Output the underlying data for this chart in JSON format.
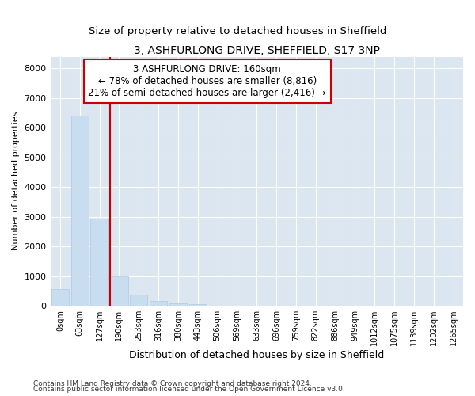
{
  "title": "3, ASHFURLONG DRIVE, SHEFFIELD, S17 3NP",
  "subtitle": "Size of property relative to detached houses in Sheffield",
  "xlabel": "Distribution of detached houses by size in Sheffield",
  "ylabel": "Number of detached properties",
  "footer_line1": "Contains HM Land Registry data © Crown copyright and database right 2024.",
  "footer_line2": "Contains public sector information licensed under the Open Government Licence v3.0.",
  "bar_labels": [
    "0sqm",
    "63sqm",
    "127sqm",
    "190sqm",
    "253sqm",
    "316sqm",
    "380sqm",
    "443sqm",
    "506sqm",
    "569sqm",
    "633sqm",
    "696sqm",
    "759sqm",
    "822sqm",
    "886sqm",
    "949sqm",
    "1012sqm",
    "1075sqm",
    "1139sqm",
    "1202sqm",
    "1265sqm"
  ],
  "bar_values": [
    550,
    6400,
    2950,
    1000,
    380,
    170,
    90,
    55,
    0,
    0,
    0,
    0,
    0,
    0,
    0,
    0,
    0,
    0,
    0,
    0,
    0
  ],
  "bar_color": "#c9ddf0",
  "bar_edge_color": "#b0c8e0",
  "ylim": [
    0,
    8400
  ],
  "yticks": [
    0,
    1000,
    2000,
    3000,
    4000,
    5000,
    6000,
    7000,
    8000
  ],
  "property_line_color": "#cc0000",
  "annotation_line1": "3 ASHFURLONG DRIVE: 160sqm",
  "annotation_line2": "← 78% of detached houses are smaller (8,816)",
  "annotation_line3": "21% of semi-detached houses are larger (2,416) →",
  "annotation_box_color": "#cc0000",
  "fig_bg_color": "#ffffff",
  "plot_bg_color": "#dce6f0",
  "grid_color": "#ffffff",
  "title_fontsize": 10,
  "subtitle_fontsize": 9.5,
  "annotation_fontsize": 8.5,
  "ylabel_fontsize": 8,
  "xlabel_fontsize": 9,
  "footer_fontsize": 6.5
}
